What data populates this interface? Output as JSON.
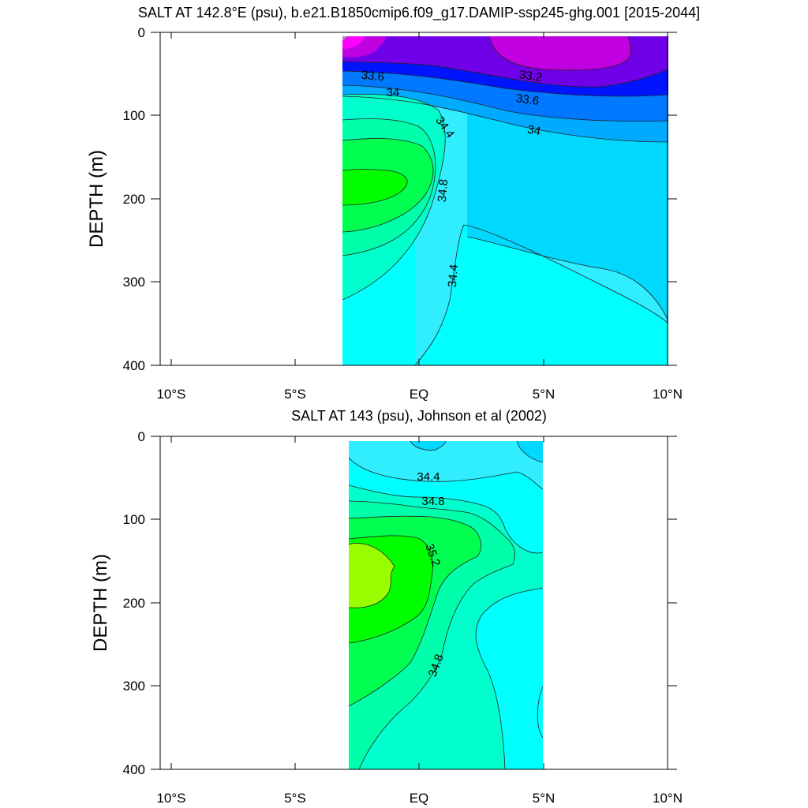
{
  "chart_data": [
    {
      "type": "contour",
      "title": "SALT AT 142.8°E (psu), b.e21.B1850cmip6.f09_g17.DAMIP-ssp245-ghg.001 [2015-2044]",
      "ylabel": "DEPTH (m)",
      "xlim": [
        -10,
        10
      ],
      "ylim": [
        400,
        0
      ],
      "x_ticks": [
        -10,
        -5,
        0,
        5,
        10
      ],
      "x_tick_labels": [
        "10°S",
        "5°S",
        "EQ",
        "5°N",
        "10°N"
      ],
      "y_ticks": [
        0,
        100,
        200,
        300,
        400
      ],
      "y_tick_labels": [
        "0",
        "100",
        "200",
        "300",
        "400"
      ],
      "data_extent": {
        "lon": [
          -3.1,
          10
        ],
        "depth": [
          5,
          400
        ]
      },
      "contour_labels": [
        {
          "text": "33.6",
          "lon": -1.9,
          "depth": 52
        },
        {
          "text": "33.2",
          "lon": 4.3,
          "depth": 53
        },
        {
          "text": "34",
          "lon": -1.1,
          "depth": 72
        },
        {
          "text": "33.6",
          "lon": 4.2,
          "depth": 82
        },
        {
          "text": "34.4",
          "lon": 0.9,
          "depth": 110
        },
        {
          "text": "34",
          "lon": 4.6,
          "depth": 118
        },
        {
          "text": "34.8",
          "lon": 1.1,
          "depth": 195
        },
        {
          "text": "34.4",
          "lon": 1.5,
          "depth": 310
        }
      ],
      "fill_colors": [
        "#9a9a9a",
        "#ff00ff",
        "#c000e0",
        "#7000e8",
        "#0014ff",
        "#0078ff",
        "#00aaff",
        "#00d8ff",
        "#30eeff",
        "#00ffff",
        "#00ffcc",
        "#00ffaa",
        "#00ff50",
        "#00ff00"
      ]
    },
    {
      "type": "contour",
      "title": "SALT AT 143 (psu), Johnson et al (2002)",
      "ylabel": "DEPTH (m)",
      "xlim": [
        -10,
        10
      ],
      "ylim": [
        400,
        0
      ],
      "x_ticks": [
        -10,
        -5,
        0,
        5,
        10
      ],
      "x_tick_labels": [
        "10°S",
        "5°S",
        "EQ",
        "5°N",
        "10°N"
      ],
      "y_ticks": [
        0,
        100,
        200,
        300,
        400
      ],
      "y_tick_labels": [
        "0",
        "100",
        "200",
        "300",
        "400"
      ],
      "data_extent": {
        "lon": [
          -2.8,
          5
        ],
        "depth": [
          5,
          400
        ]
      },
      "contour_labels": [
        {
          "text": "34.4",
          "lon": 0.4,
          "depth": 48
        },
        {
          "text": "34.8",
          "lon": 0.6,
          "depth": 77
        },
        {
          "text": "35.2",
          "lon": 0.4,
          "depth": 145
        },
        {
          "text": "34.8",
          "lon": 0.8,
          "depth": 270
        }
      ],
      "fill_colors": [
        "#00d8ff",
        "#30eeff",
        "#00ffff",
        "#00ffcc",
        "#00ffaa",
        "#00ff50",
        "#00ff00",
        "#99ff00"
      ]
    }
  ]
}
